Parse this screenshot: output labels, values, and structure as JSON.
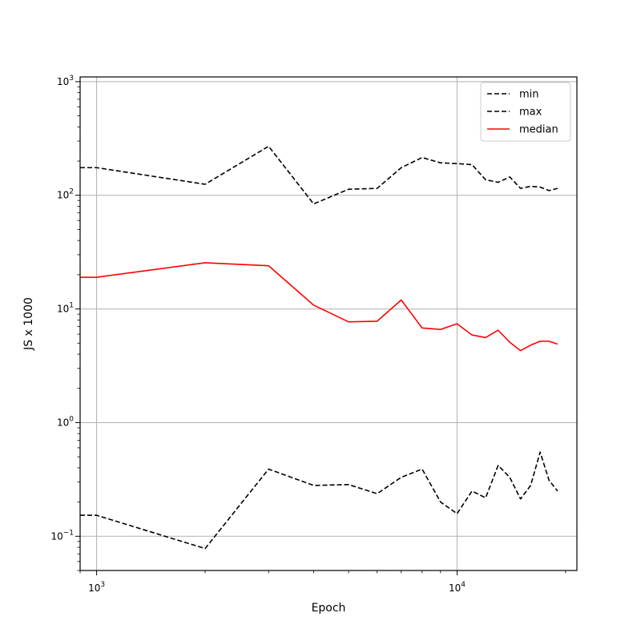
{
  "chart_data": {
    "type": "line",
    "xscale": "log",
    "yscale": "log",
    "xlim": [
      900,
      21500
    ],
    "ylim": [
      0.05,
      1100
    ],
    "xlabel": "Epoch",
    "ylabel": "JS x 1000",
    "grid": true,
    "legend_position": "top-right",
    "colors": {
      "min": "#000000",
      "max": "#000000",
      "median": "#ff0000",
      "grid": "#b0b0b0",
      "axis": "#000000"
    },
    "x": [
      900,
      1000,
      2000,
      3000,
      4000,
      5000,
      6000,
      7000,
      8000,
      9000,
      10000,
      11000,
      12000,
      13000,
      14000,
      15000,
      16000,
      17000,
      18000,
      19000
    ],
    "series": [
      {
        "name": "min",
        "style": "dashed",
        "values": [
          0.153,
          0.153,
          0.078,
          0.39,
          0.28,
          0.285,
          0.237,
          0.33,
          0.39,
          0.2,
          0.158,
          0.25,
          0.218,
          0.42,
          0.33,
          0.213,
          0.28,
          0.55,
          0.31,
          0.25
        ]
      },
      {
        "name": "max",
        "style": "dashed",
        "values": [
          175,
          175,
          125,
          270,
          84,
          113,
          115,
          175,
          215,
          193,
          190,
          186,
          137,
          130,
          145,
          115,
          120,
          118,
          110,
          115
        ]
      },
      {
        "name": "median",
        "style": "solid",
        "values": [
          19.0,
          19.0,
          25.5,
          24.0,
          10.8,
          7.7,
          7.8,
          12.0,
          6.8,
          6.6,
          7.4,
          5.9,
          5.6,
          6.5,
          5.1,
          4.3,
          4.8,
          5.2,
          5.2,
          4.9
        ]
      }
    ],
    "x_major_ticks": [
      {
        "value": 1000,
        "base": "10",
        "exp": "3"
      },
      {
        "value": 10000,
        "base": "10",
        "exp": "4"
      }
    ],
    "y_major_ticks": [
      {
        "value": 0.1,
        "base": "10",
        "exp": "−1"
      },
      {
        "value": 1,
        "base": "10",
        "exp": "0"
      },
      {
        "value": 10,
        "base": "10",
        "exp": "1"
      },
      {
        "value": 100,
        "base": "10",
        "exp": "2"
      },
      {
        "value": 1000,
        "base": "10",
        "exp": "3"
      }
    ]
  }
}
